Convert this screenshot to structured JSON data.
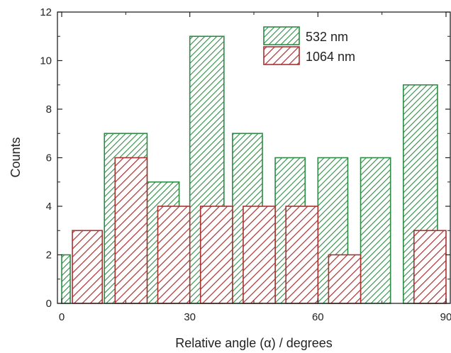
{
  "chart_data": {
    "type": "bar",
    "title": "",
    "xlabel": "Relative angle (α) / degrees",
    "ylabel": "Counts",
    "xlim": [
      -1,
      91
    ],
    "ylim": [
      0,
      12
    ],
    "x_ticks": [
      "0",
      "30",
      "60",
      "90"
    ],
    "y_ticks": [
      "0",
      "2",
      "4",
      "6",
      "8",
      "10",
      "12"
    ],
    "grid": false,
    "legend_position": "top-right",
    "series": [
      {
        "name": "532 nm",
        "color": "#2e8b45",
        "hatch": "diagonal",
        "bins": [
          [
            0,
            2
          ],
          [
            10,
            20
          ],
          [
            20,
            27.5
          ],
          [
            30,
            38
          ],
          [
            40,
            47
          ],
          [
            50,
            57
          ],
          [
            60,
            67
          ],
          [
            70,
            77
          ],
          [
            80,
            88
          ]
        ],
        "values": [
          2,
          7,
          5,
          11,
          7,
          6,
          6,
          6,
          9
        ]
      },
      {
        "name": "1064 nm",
        "color": "#a83232",
        "hatch": "diagonal",
        "bins": [
          [
            2.5,
            9.5
          ],
          [
            12.5,
            20
          ],
          [
            22.5,
            30
          ],
          [
            32.5,
            40
          ],
          [
            42.5,
            50
          ],
          [
            52.5,
            60
          ],
          [
            62.5,
            70
          ],
          [
            82.5,
            90
          ]
        ],
        "values": [
          3,
          6,
          4,
          4,
          4,
          4,
          2,
          3
        ]
      }
    ]
  }
}
